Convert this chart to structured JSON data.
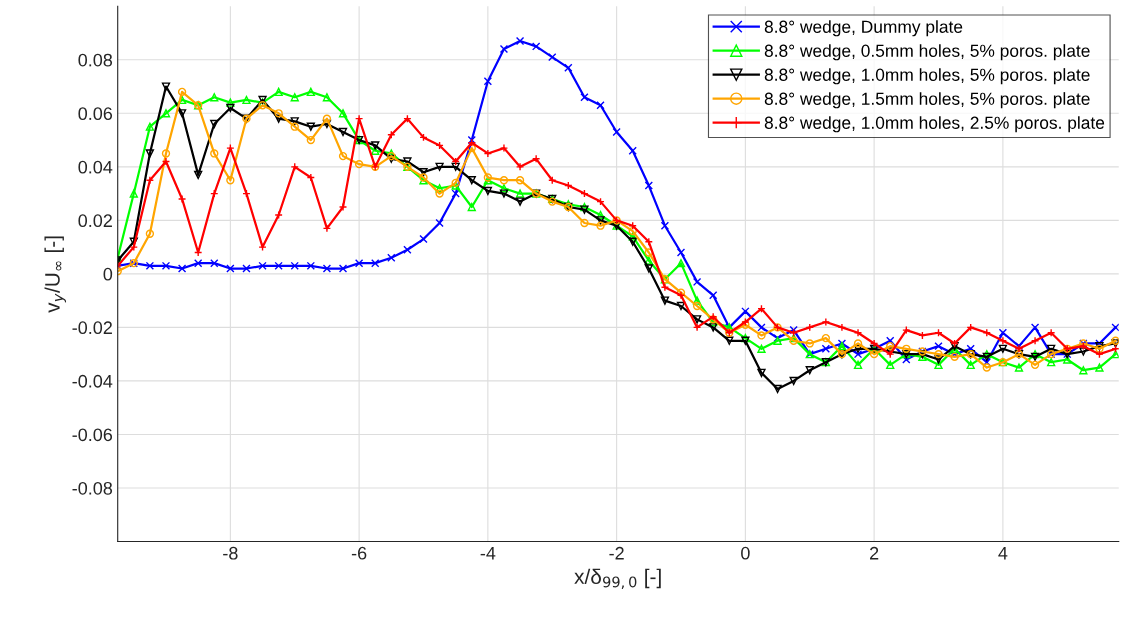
{
  "chart_data": {
    "type": "line",
    "xlabel": "x/δ$_{99,0}$ [-]",
    "ylabel": "v$_{y}$/U$_{∞}$ [-]",
    "x": [
      -9.75,
      -9.5,
      -9.25,
      -9.0,
      -8.75,
      -8.5,
      -8.25,
      -8.0,
      -7.75,
      -7.5,
      -7.25,
      -7.0,
      -6.75,
      -6.5,
      -6.25,
      -6.0,
      -5.75,
      -5.5,
      -5.25,
      -5.0,
      -4.75,
      -4.5,
      -4.25,
      -4.0,
      -3.75,
      -3.5,
      -3.25,
      -3.0,
      -2.75,
      -2.5,
      -2.25,
      -2.0,
      -1.75,
      -1.5,
      -1.25,
      -1.0,
      -0.75,
      -0.5,
      -0.25,
      0,
      0.25,
      0.5,
      0.75,
      1.0,
      1.25,
      1.5,
      1.75,
      2.0,
      2.25,
      2.5,
      2.75,
      3.0,
      3.25,
      3.5,
      3.75,
      4.0,
      4.25,
      4.5,
      4.75,
      5.0,
      5.25,
      5.5,
      5.75
    ],
    "series": [
      {
        "name": "8.8° wedge, Dummy plate",
        "color": "#0000ff",
        "marker": "cross",
        "values": [
          0.003,
          0.004,
          0.003,
          0.003,
          0.002,
          0.004,
          0.004,
          0.002,
          0.002,
          0.003,
          0.003,
          0.003,
          0.003,
          0.002,
          0.002,
          0.004,
          0.004,
          0.006,
          0.009,
          0.013,
          0.019,
          0.03,
          0.05,
          0.072,
          0.084,
          0.087,
          0.085,
          0.081,
          0.077,
          0.066,
          0.063,
          0.053,
          0.046,
          0.033,
          0.018,
          0.008,
          -0.003,
          -0.008,
          -0.02,
          -0.014,
          -0.02,
          -0.024,
          -0.021,
          -0.03,
          -0.028,
          -0.026,
          -0.03,
          -0.028,
          -0.025,
          -0.032,
          -0.029,
          -0.027,
          -0.03,
          -0.028,
          -0.033,
          -0.022,
          -0.027,
          -0.02,
          -0.03,
          -0.03,
          -0.026,
          -0.026,
          -0.02
        ]
      },
      {
        "name": "8.8° wedge, 0.5mm holes, 5% poros. plate",
        "color": "#00ff00",
        "marker": "triangle",
        "values": [
          0.006,
          0.03,
          0.055,
          0.06,
          0.065,
          0.063,
          0.066,
          0.064,
          0.065,
          0.064,
          0.068,
          0.066,
          0.068,
          0.066,
          0.06,
          0.05,
          0.046,
          0.045,
          0.04,
          0.035,
          0.032,
          0.033,
          0.025,
          0.035,
          0.032,
          0.03,
          0.03,
          0.028,
          0.026,
          0.025,
          0.022,
          0.018,
          0.014,
          0.005,
          -0.002,
          0.004,
          -0.01,
          -0.018,
          -0.02,
          -0.024,
          -0.028,
          -0.025,
          -0.024,
          -0.03,
          -0.033,
          -0.027,
          -0.034,
          -0.028,
          -0.034,
          -0.03,
          -0.031,
          -0.034,
          -0.028,
          -0.034,
          -0.03,
          -0.033,
          -0.035,
          -0.03,
          -0.033,
          -0.032,
          -0.036,
          -0.035,
          -0.03
        ]
      },
      {
        "name": "8.8° wedge, 1.0mm holes, 5% poros. plate",
        "color": "#000000",
        "marker": "triangle_down",
        "values": [
          0.005,
          0.012,
          0.045,
          0.07,
          0.06,
          0.037,
          0.056,
          0.062,
          0.058,
          0.065,
          0.058,
          0.057,
          0.055,
          0.056,
          0.053,
          0.05,
          0.048,
          0.043,
          0.042,
          0.038,
          0.04,
          0.04,
          0.035,
          0.031,
          0.03,
          0.027,
          0.03,
          0.028,
          0.025,
          0.024,
          0.02,
          0.018,
          0.012,
          0.002,
          -0.01,
          -0.012,
          -0.017,
          -0.02,
          -0.025,
          -0.025,
          -0.037,
          -0.043,
          -0.04,
          -0.036,
          -0.033,
          -0.03,
          -0.028,
          -0.028,
          -0.029,
          -0.03,
          -0.03,
          -0.032,
          -0.027,
          -0.03,
          -0.031,
          -0.028,
          -0.03,
          -0.031,
          -0.028,
          -0.03,
          -0.029,
          -0.027,
          -0.026
        ]
      },
      {
        "name": "8.8° wedge, 1.5mm holes, 5% poros. plate",
        "color": "#ffa500",
        "marker": "circle",
        "values": [
          0.001,
          0.004,
          0.015,
          0.045,
          0.068,
          0.063,
          0.045,
          0.035,
          0.058,
          0.063,
          0.06,
          0.055,
          0.05,
          0.058,
          0.044,
          0.041,
          0.04,
          0.044,
          0.04,
          0.036,
          0.03,
          0.034,
          0.047,
          0.036,
          0.035,
          0.035,
          0.03,
          0.027,
          0.025,
          0.019,
          0.018,
          0.02,
          0.016,
          0.008,
          -0.002,
          -0.007,
          -0.012,
          -0.017,
          -0.022,
          -0.019,
          -0.023,
          -0.02,
          -0.025,
          -0.026,
          -0.024,
          -0.03,
          -0.026,
          -0.03,
          -0.027,
          -0.028,
          -0.029,
          -0.03,
          -0.031,
          -0.03,
          -0.035,
          -0.033,
          -0.03,
          -0.034,
          -0.03,
          -0.028,
          -0.026,
          -0.028,
          -0.025
        ]
      },
      {
        "name": "8.8° wedge, 1.0mm holes, 2.5% poros. plate",
        "color": "#ff0000",
        "marker": "plus",
        "values": [
          0.003,
          0.01,
          0.035,
          0.042,
          0.028,
          0.008,
          0.03,
          0.047,
          0.03,
          0.01,
          0.022,
          0.04,
          0.036,
          0.017,
          0.025,
          0.058,
          0.04,
          0.052,
          0.058,
          0.051,
          0.048,
          0.042,
          0.049,
          0.045,
          0.047,
          0.04,
          0.043,
          0.035,
          0.033,
          0.03,
          0.027,
          0.02,
          0.018,
          0.012,
          -0.005,
          -0.008,
          -0.02,
          -0.016,
          -0.022,
          -0.018,
          -0.013,
          -0.02,
          -0.022,
          -0.02,
          -0.018,
          -0.02,
          -0.022,
          -0.026,
          -0.03,
          -0.021,
          -0.023,
          -0.022,
          -0.026,
          -0.02,
          -0.022,
          -0.025,
          -0.028,
          -0.025,
          -0.022,
          -0.028,
          -0.027,
          -0.03,
          -0.028
        ]
      }
    ],
    "xlim": [
      -9.75,
      5.8
    ],
    "ylim": [
      -0.1,
      0.1
    ],
    "xticks": [
      -8,
      -6,
      -4,
      -2,
      0,
      2,
      4
    ],
    "yticks": [
      {
        "value": -0.08,
        "label": "-0.08"
      },
      {
        "value": -0.06,
        "label": "-0.06"
      },
      {
        "value": -0.04,
        "label": "-0.04"
      },
      {
        "value": -0.02,
        "label": "-0.02"
      },
      0,
      {
        "value": 0.02,
        "label": "0.02"
      },
      {
        "value": 0.04,
        "label": "0.04"
      },
      {
        "value": 0.06,
        "label": "0.06"
      },
      {
        "value": 0.08,
        "label": "0.08"
      }
    ],
    "grid": true,
    "legend": "top right"
  }
}
